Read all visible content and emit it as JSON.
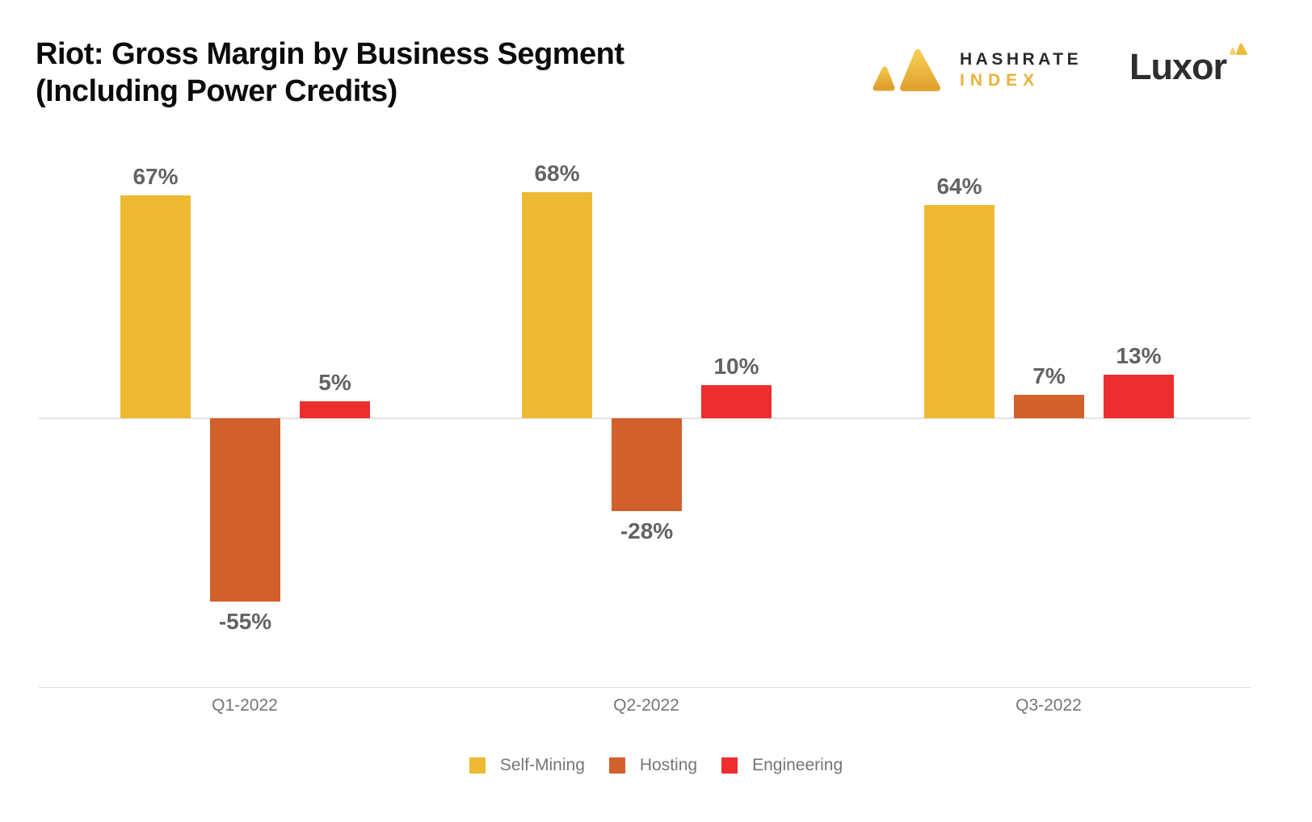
{
  "header": {
    "title_line1": "Riot: Gross Margin by Business Segment",
    "title_line2": "(Including Power Credits)",
    "hashrate_logo": {
      "line1": "HASHRATE",
      "line2": "INDEX"
    },
    "luxor_logo": {
      "text": "Luxor"
    }
  },
  "chart_data": {
    "type": "bar",
    "title": "Riot: Gross Margin by Business Segment (Including Power Credits)",
    "categories": [
      "Q1-2022",
      "Q2-2022",
      "Q3-2022"
    ],
    "series": [
      {
        "name": "Self-Mining",
        "color": "#EEB933",
        "values": [
          67,
          68,
          64
        ],
        "labels": [
          "67%",
          "68%",
          "64%"
        ]
      },
      {
        "name": "Hosting",
        "color": "#D2602C",
        "values": [
          -55,
          -28,
          7
        ],
        "labels": [
          "-55%",
          "-28%",
          "7%"
        ]
      },
      {
        "name": "Engineering",
        "color": "#EE2E2E",
        "values": [
          5,
          10,
          13
        ],
        "labels": [
          "5%",
          "10%",
          "13%"
        ]
      }
    ],
    "xlabel": "",
    "ylabel": "",
    "ylim": [
      -81,
      81
    ],
    "grid": "zero-line-only",
    "legend_position": "bottom",
    "value_label_color": "#636363",
    "axis_label_color": "#757575"
  }
}
